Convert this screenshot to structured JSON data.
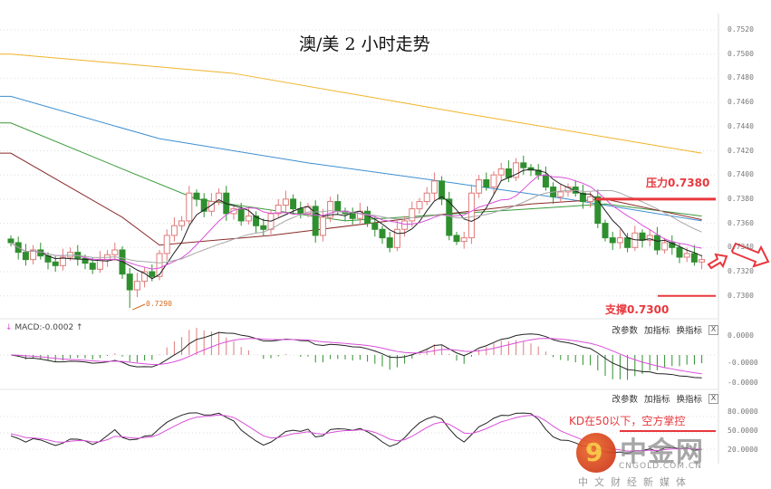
{
  "title": "澳/美 2 小时走势",
  "colors": {
    "up": "#e07a7a",
    "down": "#2f8f2f",
    "ma5": "#222222",
    "ma10": "#d94fd9",
    "ma20": "#a8a8a8",
    "accent": "#e8383d"
  },
  "annotations": {
    "resistance": "压力0.7380",
    "support": "支撑0.7300",
    "low_label": "0.7290",
    "kd_note": "KD在50以下，空方掌控"
  },
  "macd_panel": {
    "header": "MACD:-0.0002",
    "tools": [
      "改参数",
      "加指标",
      "换指标"
    ],
    "close": "X",
    "axis": [
      "0.0000",
      "-0.0000",
      "-0.0000"
    ]
  },
  "kd_panel": {
    "tools": [
      "改参数",
      "加指标",
      "换指标"
    ],
    "close": "X",
    "axis": [
      "80.0000",
      "50.0000",
      "20.0000"
    ]
  },
  "logo": {
    "name": "中金网",
    "site": "CNGOLD.COM.CN",
    "sub": "中文财经新媒体"
  },
  "chart_data": {
    "type": "candlestick",
    "title": "澳/美 2 小时走势",
    "ylim": [
      0.729,
      0.752
    ],
    "y_ticks": [
      "0.7520",
      "0.7500",
      "0.7480",
      "0.7460",
      "0.7440",
      "0.7420",
      "0.7400",
      "0.7380",
      "0.7360",
      "0.7340",
      "0.7320",
      "0.7300"
    ],
    "closes": [
      0.7344,
      0.7336,
      0.733,
      0.7338,
      0.7333,
      0.7328,
      0.7325,
      0.7332,
      0.7336,
      0.7331,
      0.7327,
      0.7322,
      0.733,
      0.7334,
      0.7338,
      0.7318,
      0.7305,
      0.7312,
      0.732,
      0.7316,
      0.7335,
      0.735,
      0.7358,
      0.7362,
      0.7385,
      0.738,
      0.737,
      0.7378,
      0.7385,
      0.7368,
      0.7372,
      0.7362,
      0.7366,
      0.7358,
      0.7355,
      0.7368,
      0.7375,
      0.738,
      0.7372,
      0.7368,
      0.7374,
      0.735,
      0.7365,
      0.7378,
      0.737,
      0.7368,
      0.7364,
      0.737,
      0.736,
      0.7355,
      0.7348,
      0.734,
      0.7355,
      0.7362,
      0.7372,
      0.7378,
      0.7385,
      0.7395,
      0.738,
      0.735,
      0.7345,
      0.7348,
      0.7385,
      0.7396,
      0.739,
      0.74,
      0.7405,
      0.7398,
      0.741,
      0.7406,
      0.7404,
      0.74,
      0.739,
      0.7382,
      0.7386,
      0.739,
      0.7385,
      0.7378,
      0.7382,
      0.736,
      0.7348,
      0.7344,
      0.7348,
      0.734,
      0.7352,
      0.7346,
      0.735,
      0.7338,
      0.7344,
      0.734,
      0.7332,
      0.7335,
      0.7328,
      0.733
    ],
    "long_ma": [
      {
        "name": "ma-yellow",
        "color": "#f0b429",
        "points": [
          [
            0,
            0.75
          ],
          [
            30,
            0.7484
          ],
          [
            60,
            0.7452
          ],
          [
            93,
            0.7418
          ]
        ]
      },
      {
        "name": "ma-blue",
        "color": "#3d8fd1",
        "points": [
          [
            0,
            0.7465
          ],
          [
            20,
            0.743
          ],
          [
            40,
            0.741
          ],
          [
            60,
            0.7393
          ],
          [
            75,
            0.738
          ],
          [
            93,
            0.7362
          ]
        ]
      },
      {
        "name": "ma-green",
        "color": "#3a9a3a",
        "points": [
          [
            0,
            0.7443
          ],
          [
            15,
            0.7405
          ],
          [
            25,
            0.738
          ],
          [
            45,
            0.7362
          ],
          [
            60,
            0.7368
          ],
          [
            80,
            0.7376
          ],
          [
            93,
            0.7366
          ]
        ]
      },
      {
        "name": "ma-darkred",
        "color": "#8b2a2a",
        "points": [
          [
            0,
            0.7418
          ],
          [
            15,
            0.7365
          ],
          [
            20,
            0.7342
          ],
          [
            35,
            0.735
          ],
          [
            55,
            0.7365
          ],
          [
            70,
            0.7376
          ],
          [
            80,
            0.738
          ],
          [
            93,
            0.7363
          ]
        ]
      }
    ],
    "levels": {
      "resistance": 0.738,
      "support": 0.73,
      "low": 0.729
    }
  }
}
